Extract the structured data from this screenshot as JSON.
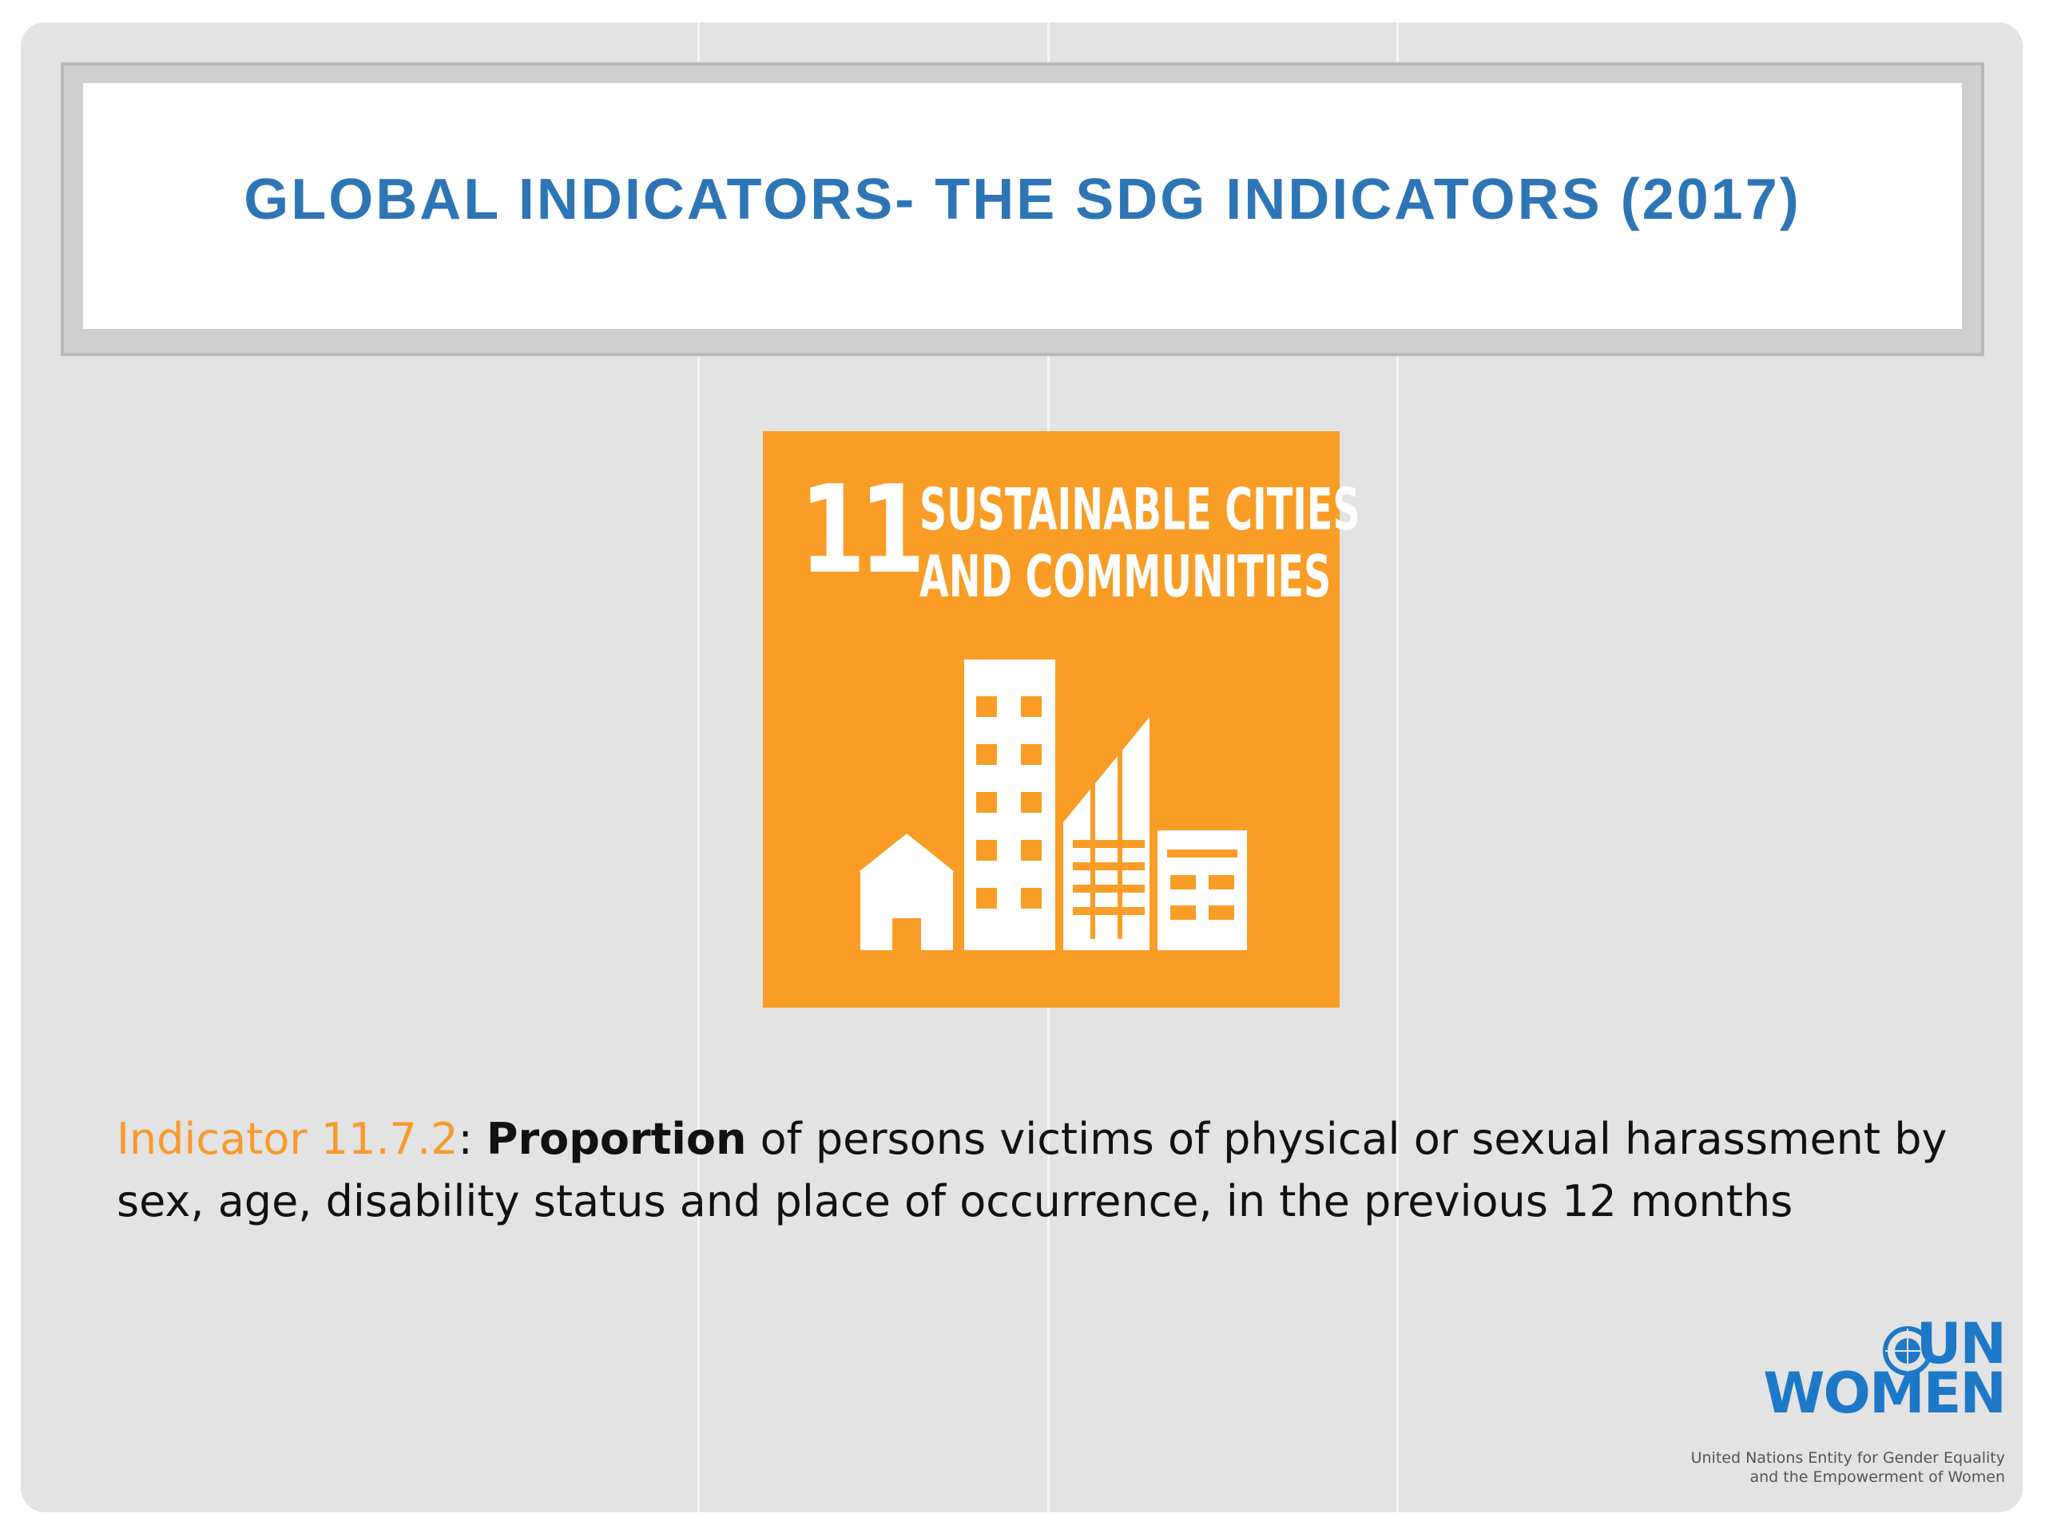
{
  "title": "GLOBAL INDICATORS- THE SDG INDICATORS (2017)",
  "sdg": {
    "number": "11",
    "title_line1": "SUSTAINABLE CITIES",
    "title_line2": "AND COMMUNITIES",
    "color": "#f99d26",
    "icon": "city-buildings-icon"
  },
  "indicator": {
    "code": "Indicator 11.7.2",
    "separator": ": ",
    "keyword": "Proportion",
    "text": " of persons victims of physical or sexual harassment by sex, age, disability status and place of occurrence, in the previous 12 months"
  },
  "logo": {
    "line1": "UN",
    "line2": "WOMEN",
    "tagline1": "United Nations Entity for Gender Equality",
    "tagline2": "and the Empowerment of Women",
    "color": "#1e78c8"
  },
  "colors": {
    "title": "#2e75b6",
    "indicator_code": "#f79a2c"
  }
}
